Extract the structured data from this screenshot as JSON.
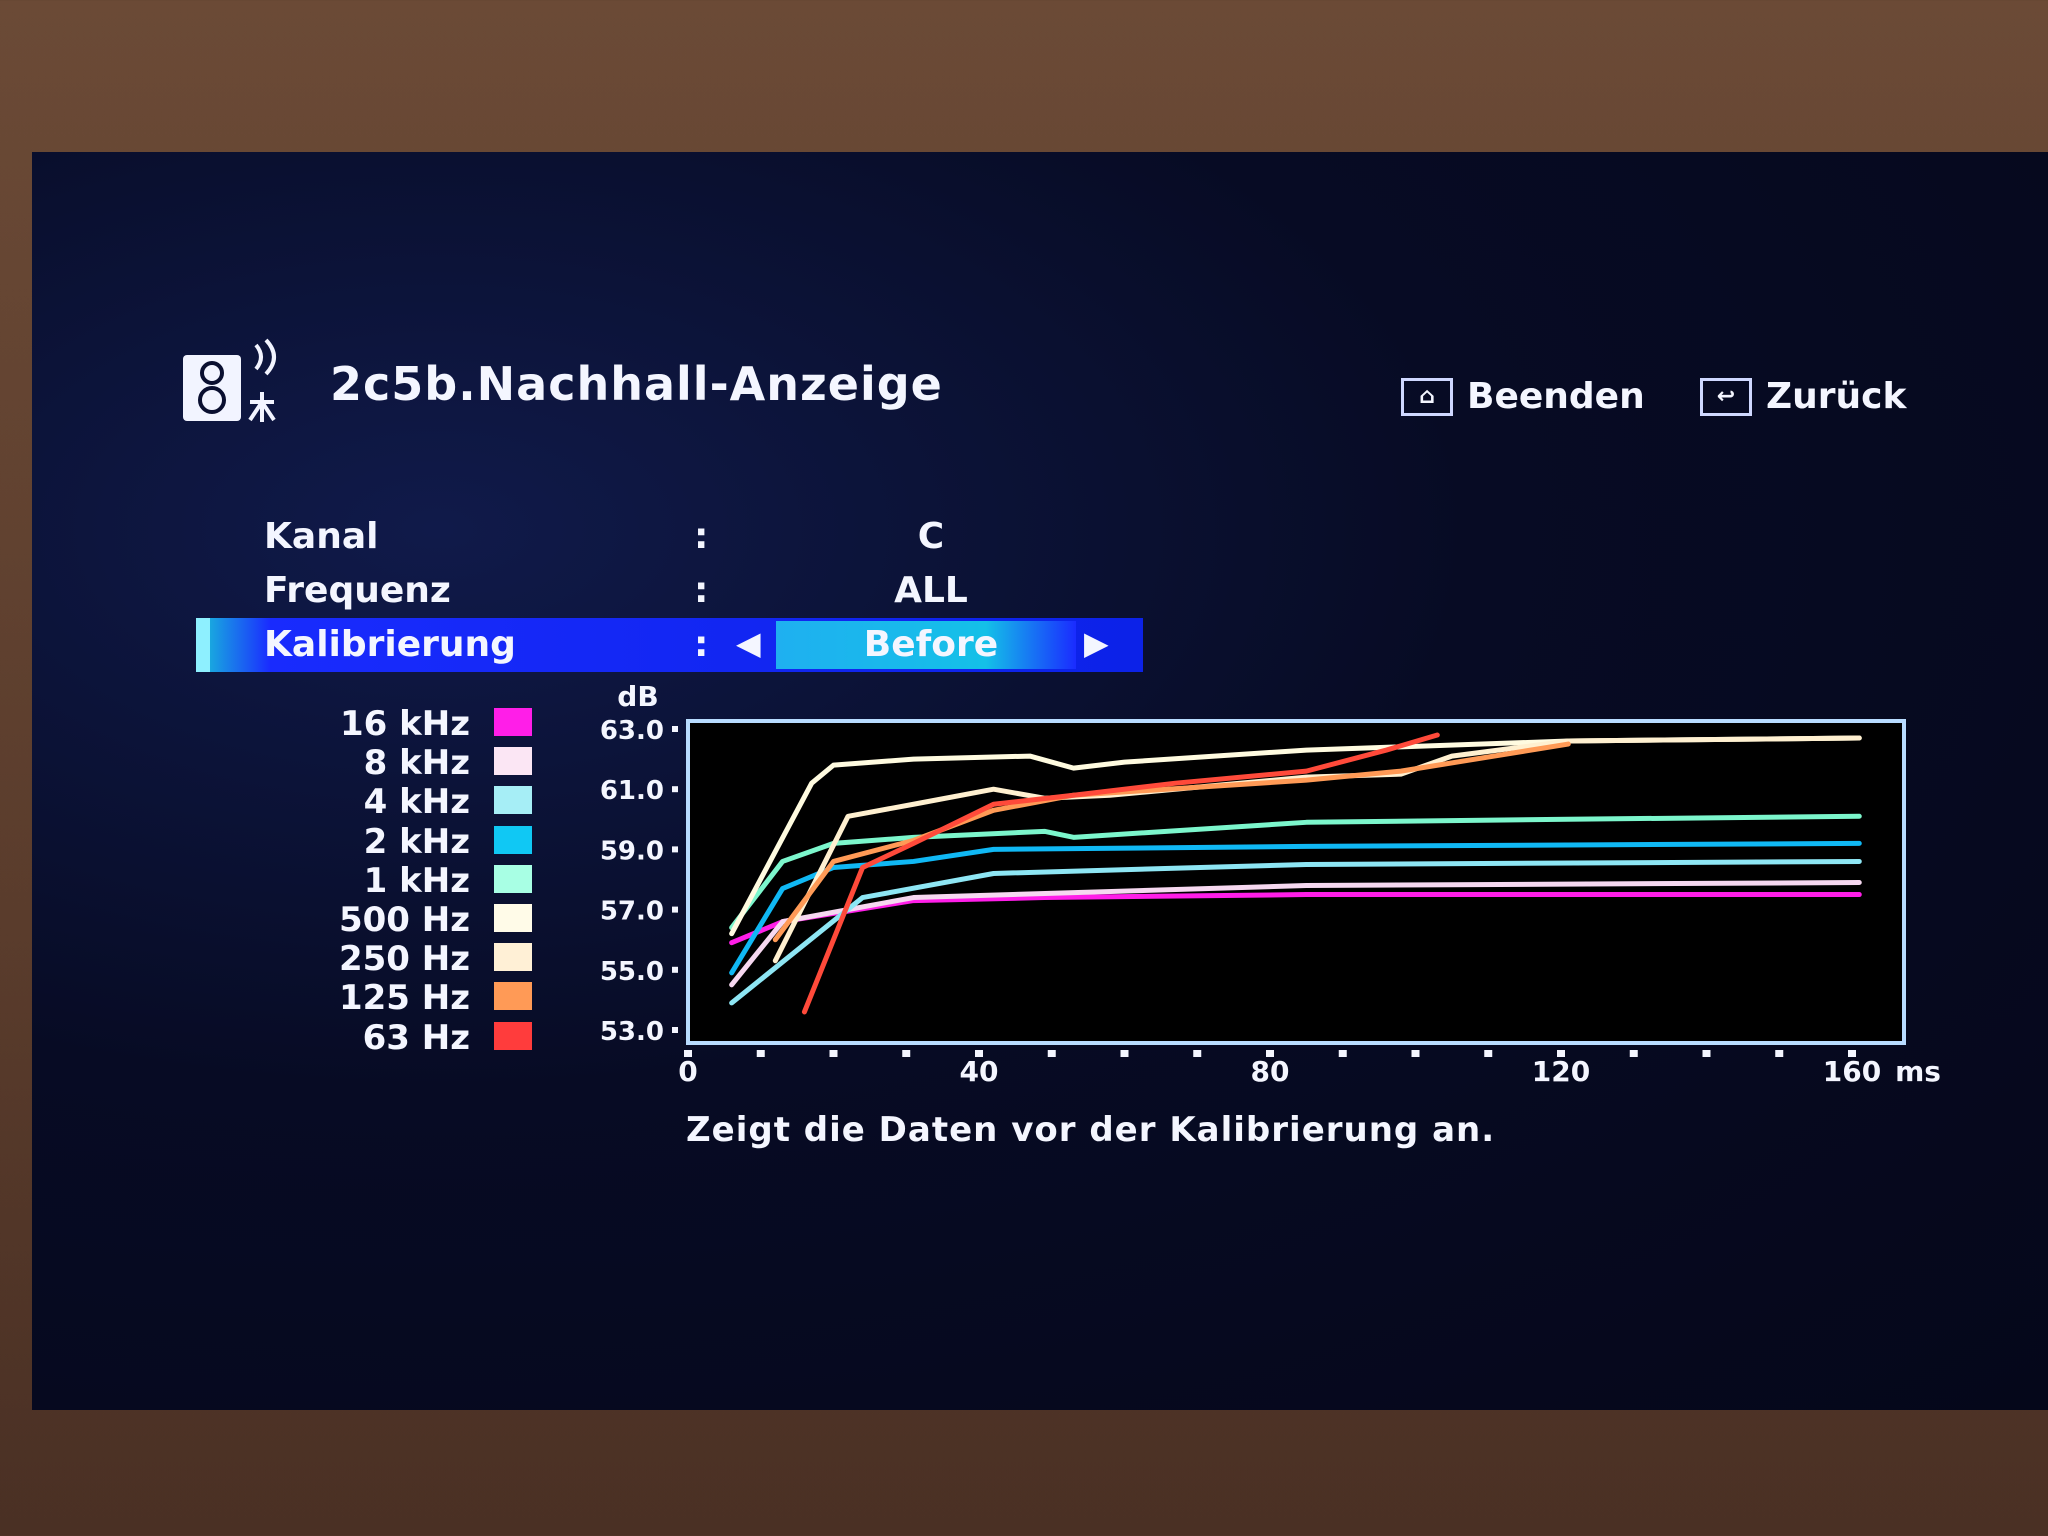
{
  "header": {
    "title": "2c5b.Nachhall-Anzeige",
    "icon": "speaker-microphone-icon",
    "buttons": [
      {
        "label": "Beenden",
        "icon": "home-icon"
      },
      {
        "label": "Zurück",
        "icon": "return-icon"
      }
    ]
  },
  "settings": [
    {
      "label": "Kanal",
      "separator": ":",
      "value": "C"
    },
    {
      "label": "Frequenz",
      "separator": ":",
      "value": "ALL"
    },
    {
      "label": "Kalibrierung",
      "separator": ":",
      "value": "Before",
      "selected": true
    }
  ],
  "caption": "Zeigt die Daten vor der Kalibrierung an.",
  "legend": [
    {
      "label": "16 kHz",
      "color": "#ff1ee8"
    },
    {
      "label": "8 kHz",
      "color": "#fbe6f4"
    },
    {
      "label": "4 kHz",
      "color": "#a6eef6"
    },
    {
      "label": "2 kHz",
      "color": "#10c8f4"
    },
    {
      "label": "1 kHz",
      "color": "#a8ffe4"
    },
    {
      "label": "500 Hz",
      "color": "#fffbe8"
    },
    {
      "label": "250 Hz",
      "color": "#fff0d6"
    },
    {
      "label": "125 Hz",
      "color": "#ff9a56"
    },
    {
      "label": "63 Hz",
      "color": "#ff3c3c"
    }
  ],
  "chart_data": {
    "type": "line",
    "ylabel": "dB",
    "xlabel": "ms",
    "ylim": [
      53.0,
      63.0
    ],
    "xlim": [
      0,
      160
    ],
    "yticks": [
      "63.0",
      "61.0",
      "59.0",
      "57.0",
      "55.0",
      "53.0"
    ],
    "xticks": [
      "0",
      "40",
      "80",
      "120",
      "160"
    ],
    "series": [
      {
        "name": "16 kHz",
        "color": "#ff1ee8",
        "x": [
          6,
          13,
          31,
          49,
          85,
          161
        ],
        "y": [
          55.9,
          56.6,
          57.3,
          57.4,
          57.5,
          57.5
        ]
      },
      {
        "name": "8 kHz",
        "color": "#f6d8f0",
        "x": [
          6,
          13,
          31,
          85,
          161
        ],
        "y": [
          54.5,
          56.6,
          57.4,
          57.8,
          57.9
        ]
      },
      {
        "name": "4 kHz",
        "color": "#8ee6f4",
        "x": [
          6,
          24,
          42,
          85,
          161
        ],
        "y": [
          53.9,
          57.4,
          58.2,
          58.5,
          58.6
        ]
      },
      {
        "name": "2 kHz",
        "color": "#10b8f4",
        "x": [
          6,
          13,
          20,
          31,
          42,
          85,
          161
        ],
        "y": [
          54.9,
          57.7,
          58.4,
          58.6,
          59.0,
          59.1,
          59.2
        ]
      },
      {
        "name": "1 kHz",
        "color": "#7cf6cc",
        "x": [
          6,
          13,
          20,
          31,
          49,
          53,
          85,
          121,
          161
        ],
        "y": [
          56.4,
          58.6,
          59.2,
          59.4,
          59.6,
          59.4,
          59.9,
          60.0,
          60.1
        ]
      },
      {
        "name": "500 Hz",
        "color": "#fffbe0",
        "x": [
          6,
          17,
          20,
          31,
          47,
          53,
          60,
          85,
          121,
          161
        ],
        "y": [
          56.2,
          61.2,
          61.8,
          62.0,
          62.1,
          61.7,
          61.9,
          62.3,
          62.6,
          62.7
        ]
      },
      {
        "name": "250 Hz",
        "color": "#fff0d0",
        "x": [
          12,
          22,
          31,
          42,
          49,
          58,
          85,
          98,
          105,
          121,
          161
        ],
        "y": [
          55.3,
          60.1,
          60.5,
          61.0,
          60.7,
          60.8,
          61.4,
          61.5,
          62.1,
          62.6,
          62.7
        ]
      },
      {
        "name": "125 Hz",
        "color": "#ff9a56",
        "x": [
          12,
          20,
          31,
          42,
          53,
          85,
          98,
          121
        ],
        "y": [
          56.0,
          58.6,
          59.3,
          60.3,
          60.8,
          61.3,
          61.6,
          62.5
        ]
      },
      {
        "name": "63 Hz",
        "color": "#ff4a3a",
        "x": [
          16,
          24,
          31,
          42,
          53,
          67,
          85,
          96,
          103
        ],
        "y": [
          53.6,
          58.4,
          59.2,
          60.5,
          60.8,
          61.2,
          61.6,
          62.3,
          62.8
        ]
      }
    ]
  }
}
